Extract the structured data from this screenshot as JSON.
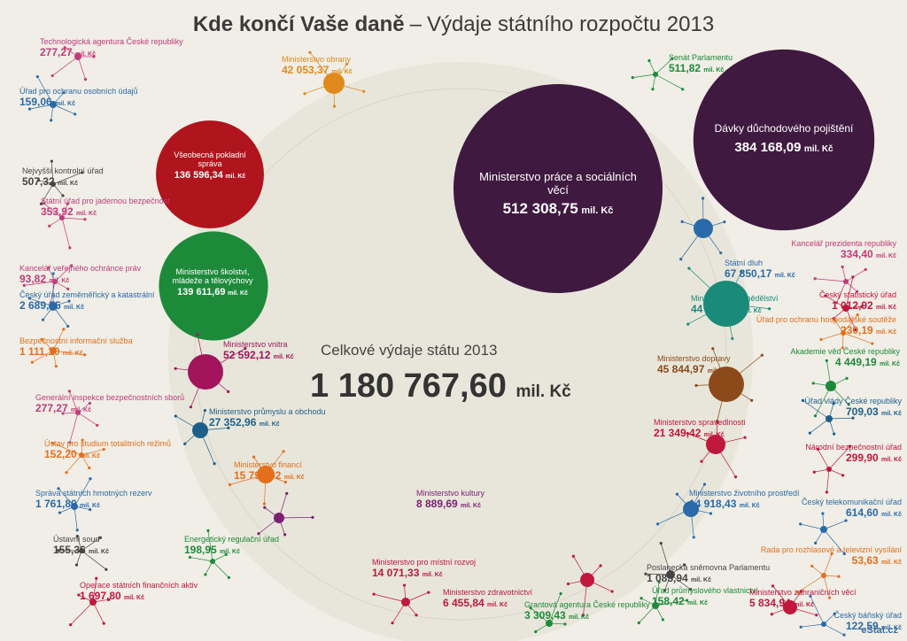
{
  "title": {
    "bold": "Kde končí Vaše daně",
    "dash": "–",
    "rest": "Výdaje státního rozpočtu 2013"
  },
  "total": {
    "label": "Celkové výdaje státu 2013",
    "value": "1 180 767,60",
    "unit": "mil. Kč"
  },
  "brand": "eStat.cz",
  "colors": {
    "bg": "#f0eee6",
    "plate": "#e6e4d8",
    "mpsv": "#3f1940",
    "mf_red": "#b0141c",
    "msmt": "#1d8a3a",
    "mv": "#a2145c",
    "mpo": "#1d5f8a",
    "mfin": "#e36f1c",
    "mk": "#7a2073",
    "mzv": "#c0173c",
    "mze": "#1a8a7a",
    "md": "#8c4a1a",
    "mo": "#e08a1c"
  },
  "chart_data": {
    "type": "bubble",
    "unit": "mil. Kč",
    "total": 1180767.6,
    "center_bubbles": [
      {
        "name": "Ministerstvo práce a sociálních věcí",
        "value": 512308.75,
        "color": "#3f1940"
      },
      {
        "name": "Dávky důchodového pojištění",
        "value": 384168.09,
        "color": "#3f1940"
      },
      {
        "name": "Všeobecná pokladní správa",
        "value": 136596.34,
        "color": "#b0141c"
      },
      {
        "name": "Ministerstvo školství, mládeže a tělovýchovy",
        "value": 139611.69,
        "color": "#1d8a3a"
      }
    ],
    "chapters": [
      {
        "name": "Technologická agentura České republiky",
        "value": "277,27",
        "color": "#c23a7a"
      },
      {
        "name": "Úřad pro ochranu osobních údajů",
        "value": "159,06",
        "color": "#2a6aa8"
      },
      {
        "name": "Nejvyšší kontrolní úřad",
        "value": "507,32",
        "color": "#444444"
      },
      {
        "name": "Státní úřad pro jadernou bezpečnost",
        "value": "353,92",
        "color": "#c23a7a"
      },
      {
        "name": "Kancelář veřejného ochránce práv",
        "value": "93,82",
        "color": "#c23a7a"
      },
      {
        "name": "Český úřad zeměměřický a katastrální",
        "value": "2 689,75",
        "color": "#2a6aa8"
      },
      {
        "name": "Bezpečnostní informační služba",
        "value": "1 111,10",
        "color": "#e36f1c"
      },
      {
        "name": "Generální inspekce bezpečnostních sborů",
        "value": "277,27",
        "color": "#c23a7a"
      },
      {
        "name": "Ústav pro studium totalitních režimů",
        "value": "152,20",
        "color": "#e36f1c"
      },
      {
        "name": "Správa státních hmotných rezerv",
        "value": "1 761,80",
        "color": "#2a6aa8"
      },
      {
        "name": "Ústavní soud",
        "value": "155,36",
        "color": "#444444"
      },
      {
        "name": "Operace státních finančních aktiv",
        "value": "1 697,80",
        "color": "#c0173c"
      },
      {
        "name": "Ministerstvo obrany",
        "value": "42 053,37",
        "color": "#e08a1c"
      },
      {
        "name": "Ministerstvo vnitra",
        "value": "52 592,12",
        "color": "#a2145c"
      },
      {
        "name": "Ministerstvo průmyslu a obchodu",
        "value": "27 352,96",
        "color": "#1d5f8a"
      },
      {
        "name": "Ministerstvo financí",
        "value": "15 795,92",
        "color": "#e36f1c"
      },
      {
        "name": "Energetický regulační úřad",
        "value": "198,95",
        "color": "#1d8a3a"
      },
      {
        "name": "Ministerstvo kultury",
        "value": "8 889,69",
        "color": "#7a2073"
      },
      {
        "name": "Ministerstvo pro místní rozvoj",
        "value": "14 071,33",
        "color": "#c0173c"
      },
      {
        "name": "Ministerstvo zdravotnictví",
        "value": "6 455,84",
        "color": "#c0173c"
      },
      {
        "name": "Grantová agentura České republiky",
        "value": "3 309,43",
        "color": "#1d8a3a"
      },
      {
        "name": "Senát Parlamentu",
        "value": "511,82",
        "color": "#1d8a3a"
      },
      {
        "name": "Státní dluh",
        "value": "67 850,17",
        "color": "#2a6aa8"
      },
      {
        "name": "Ministerstvo zemědělství",
        "value": "44 134,75",
        "color": "#1a8a7a"
      },
      {
        "name": "Ministerstvo dopravy",
        "value": "45 844,97",
        "color": "#8c4a1a"
      },
      {
        "name": "Ministerstvo spravedlnosti",
        "value": "21 349,42",
        "color": "#c0173c"
      },
      {
        "name": "Ministerstvo životního prostředí",
        "value": "14 918,43",
        "color": "#2a6aa8"
      },
      {
        "name": "Poslanecká sněmovna Parlamentu",
        "value": "1 085,94",
        "color": "#444444"
      },
      {
        "name": "Úřad průmyslového vlastnictví",
        "value": "158,42",
        "color": "#1d8a3a"
      },
      {
        "name": "Ministerstvo zahraničních věcí",
        "value": "5 834,94",
        "color": "#c0173c"
      },
      {
        "name": "Kancelář prezidenta republiky",
        "value": "334,40",
        "color": "#c23a7a"
      },
      {
        "name": "Český statistický úřad",
        "value": "1 012,92",
        "color": "#c0173c"
      },
      {
        "name": "Úřad pro ochranu hospodářské soutěže",
        "value": "230,19",
        "color": "#e36f1c"
      },
      {
        "name": "Akademie věd České republiky",
        "value": "4 449,19",
        "color": "#1d8a3a"
      },
      {
        "name": "Úřad vlády České republiky",
        "value": "709,03",
        "color": "#1d5f8a"
      },
      {
        "name": "Národní bezpečnostní úřad",
        "value": "299,90",
        "color": "#c0173c"
      },
      {
        "name": "Český telekomunikační úřad",
        "value": "614,60",
        "color": "#2a6aa8"
      },
      {
        "name": "Rada pro rozhlasové a televizní vysílání",
        "value": "53,63",
        "color": "#e36f1c"
      },
      {
        "name": "Český báňský úřad",
        "value": "122,59",
        "color": "#2a6aa8"
      }
    ]
  },
  "labels": {
    "mpsv": {
      "name": "Ministerstvo práce a sociálních věcí",
      "value": "512 308,75",
      "unit": "mil. Kč"
    },
    "duchody": {
      "name": "Dávky důchodového pojištění",
      "value": "384 168,09",
      "unit": "mil. Kč"
    },
    "vps": {
      "name": "Všeobecná pokladní správa",
      "value": "136 596,34",
      "unit": "mil. Kč"
    },
    "msmt": {
      "name": "Ministerstvo školství, mládeže a tělovýchovy",
      "value": "139 611,69",
      "unit": "mil. Kč"
    }
  }
}
